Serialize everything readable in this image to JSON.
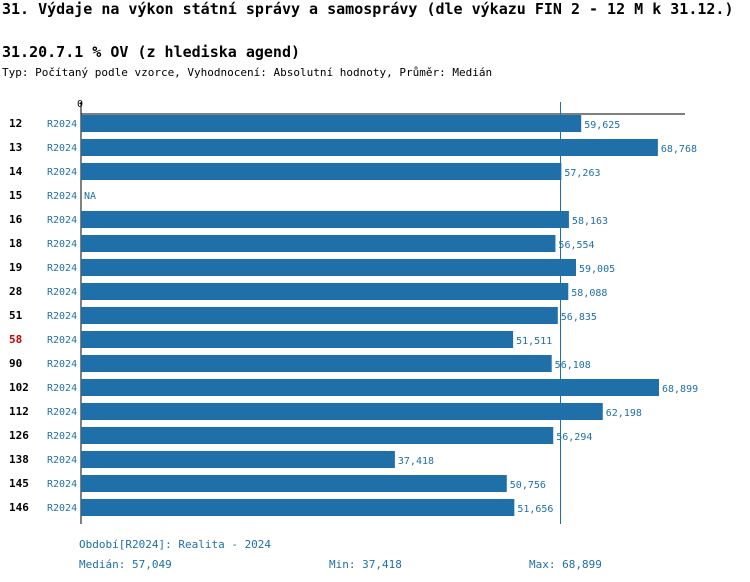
{
  "title": "31. Výdaje na výkon státní správy a samosprávy (dle výkazu FIN 2 - 12 M k 31.12.)",
  "subtitle": "31.20.7.1 % OV (z hlediska agend)",
  "info": "Typ: Počítaný podle vzorce, Vyhodnocení: Absolutní hodnoty, Průměr: Medián",
  "colors": {
    "bar": "#1f6fa8",
    "label": "#1f6fa8",
    "highlight": "#cc0000",
    "axis": "#000000",
    "median": "#1f6fa8"
  },
  "chart_data": {
    "type": "bar",
    "orientation": "horizontal",
    "axis_zero_label": "0",
    "xlim": [
      0,
      72000
    ],
    "median_line": 57049,
    "highlight_category": "58",
    "categories": [
      "12",
      "13",
      "14",
      "15",
      "16",
      "18",
      "19",
      "28",
      "51",
      "58",
      "90",
      "102",
      "112",
      "126",
      "138",
      "145",
      "146"
    ],
    "periods": [
      "R2024",
      "R2024",
      "R2024",
      "R2024",
      "R2024",
      "R2024",
      "R2024",
      "R2024",
      "R2024",
      "R2024",
      "R2024",
      "R2024",
      "R2024",
      "R2024",
      "R2024",
      "R2024",
      "R2024"
    ],
    "values": [
      59625,
      68768,
      57263,
      null,
      58163,
      56554,
      59005,
      58088,
      56835,
      51511,
      56108,
      68899,
      62198,
      56294,
      37418,
      50756,
      51656
    ],
    "value_labels": [
      "59,625",
      "68,768",
      "57,263",
      "NA",
      "58,163",
      "56,554",
      "59,005",
      "58,088",
      "56,835",
      "51,511",
      "56,108",
      "68,899",
      "62,198",
      "56,294",
      "37,418",
      "50,756",
      "51,656"
    ]
  },
  "footer": {
    "period_text": "Období[R2024]: Realita - 2024",
    "median_text": "Medián: 57,049",
    "min_text": "Min: 37,418",
    "max_text": "Max: 68,899"
  }
}
